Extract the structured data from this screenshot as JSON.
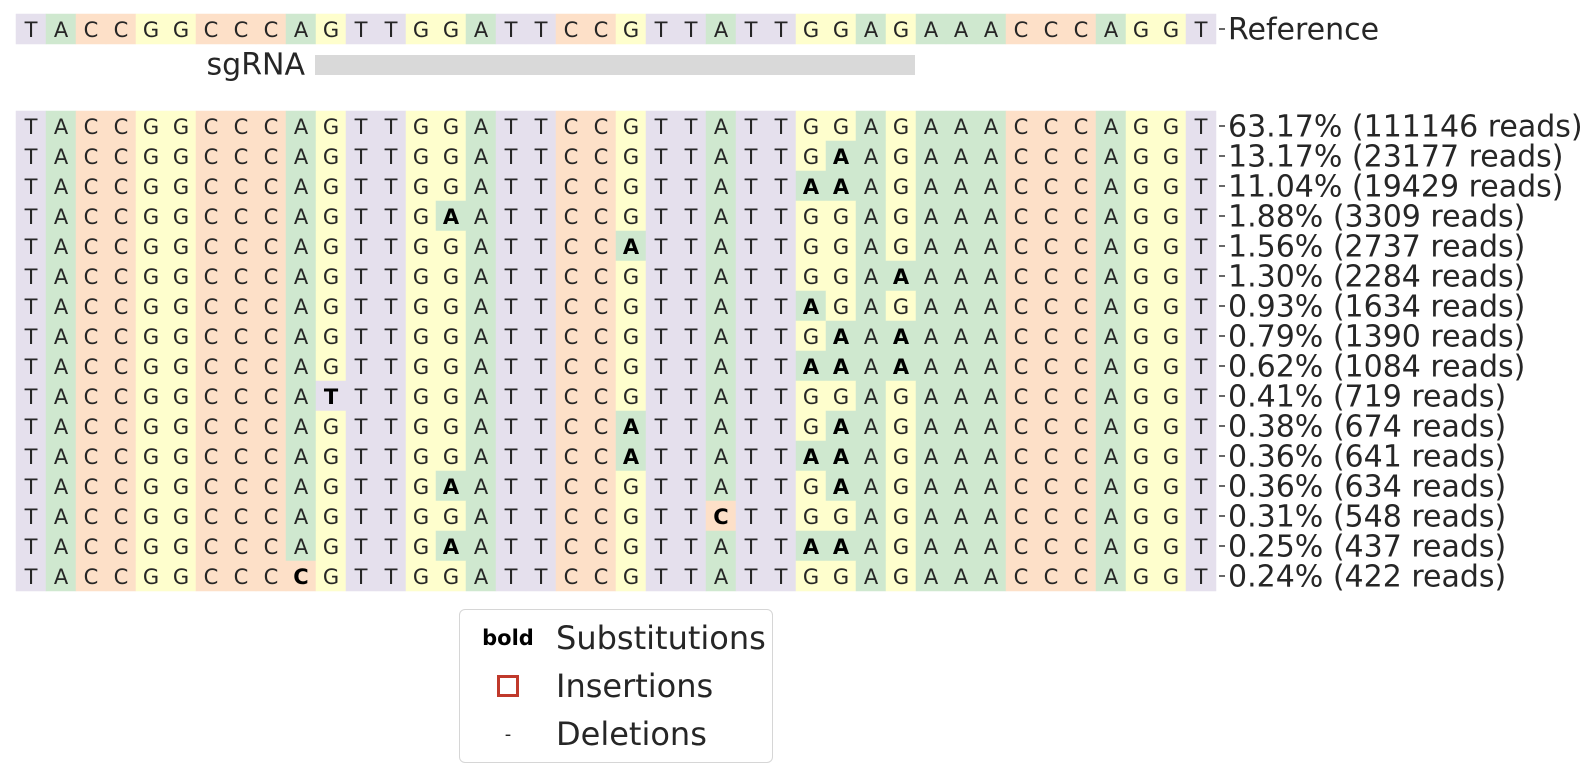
{
  "reference": {
    "sequence": "TACCGGCCCAGTTGGATTCCGTTATTGGAGAAACCCAGGT",
    "trailing_char": "-",
    "label": "Reference"
  },
  "sgrna": {
    "label": "sgRNA",
    "start_index": 10,
    "end_index": 29
  },
  "base_colors": {
    "A": "#cfe8cf",
    "C": "#fde0c8",
    "G": "#fefecd",
    "T": "#e5e0ed",
    "deletion": "#ffffff"
  },
  "sgrna_bar_color": "#d9d9d9",
  "insertion_color": "#c0392b",
  "alleles": [
    {
      "sequence": "TACCGGCCCAGTTGGATTCCGTTATTGGAGAAACCCAGGT",
      "substitutions": [],
      "label": "63.17% (111146 reads)"
    },
    {
      "sequence": "TACCGGCCCAGTTGGATTCCGTTATTGAAGAAACCCAGGT",
      "substitutions": [
        27
      ],
      "label": "13.17% (23177 reads)"
    },
    {
      "sequence": "TACCGGCCCAGTTGGATTCCGTTATTAAAGAAACCCAGGT",
      "substitutions": [
        26,
        27
      ],
      "label": "11.04% (19429 reads)"
    },
    {
      "sequence": "TACCGGCCCAGTTGAATTCCGTTATTGGAGAAACCCAGGT",
      "substitutions": [
        14
      ],
      "label": "1.88% (3309 reads)"
    },
    {
      "sequence": "TACCGGCCCAGTTGGATTCCATTATTGGAGAAACCCAGGT",
      "substitutions": [
        20
      ],
      "label": "1.56% (2737 reads)"
    },
    {
      "sequence": "TACCGGCCCAGTTGGATTCCGTTATTGGAAAAACCCAGGT",
      "substitutions": [
        29
      ],
      "label": "1.30% (2284 reads)"
    },
    {
      "sequence": "TACCGGCCCAGTTGGATTCCGTTATTAGAGAAACCCAGGT",
      "substitutions": [
        26
      ],
      "label": "0.93% (1634 reads)"
    },
    {
      "sequence": "TACCGGCCCAGTTGGATTCCGTTATTGAAAAAACCCAGGT",
      "substitutions": [
        27,
        29
      ],
      "label": "0.79% (1390 reads)"
    },
    {
      "sequence": "TACCGGCCCAGTTGGATTCCGTTATTAAAAAAACCCAGGT",
      "substitutions": [
        26,
        27,
        29
      ],
      "label": "0.62% (1084 reads)"
    },
    {
      "sequence": "TACCGGCCCATTTGGATTCCGTTATTGGAGAAACCCAGGT",
      "substitutions": [
        10
      ],
      "label": "0.41% (719 reads)"
    },
    {
      "sequence": "TACCGGCCCAGTTGGATTCCATTATTGAAGAAACCCAGGT",
      "substitutions": [
        20,
        27
      ],
      "label": "0.38% (674 reads)"
    },
    {
      "sequence": "TACCGGCCCAGTTGGATTCCATTATTAAAGAAACCCAGGT",
      "substitutions": [
        20,
        26,
        27
      ],
      "label": "0.36% (641 reads)"
    },
    {
      "sequence": "TACCGGCCCAGTTGAATTCCGTTATTGAAGAAACCCAGGT",
      "substitutions": [
        14,
        27
      ],
      "label": "0.36% (634 reads)"
    },
    {
      "sequence": "TACCGGCCCAGTTGGATTCCGTTCTTGGAGAAACCCAGGT",
      "substitutions": [
        23
      ],
      "label": "0.31% (548 reads)"
    },
    {
      "sequence": "TACCGGCCCAGTTGAATTCCGTTATTAAAGAAACCCAGGT",
      "substitutions": [
        14,
        26,
        27
      ],
      "label": "0.25% (437 reads)"
    },
    {
      "sequence": "TACCGGCCCCGTTGGATTCCGTTATTGGAGAAACCCAGGT",
      "substitutions": [
        9
      ],
      "label": "0.24% (422 reads)"
    }
  ],
  "legend": {
    "substitutions_key": "bold",
    "substitutions_label": "Substitutions",
    "insertions_label": "Insertions",
    "deletions_key": "-",
    "deletions_label": "Deletions"
  }
}
